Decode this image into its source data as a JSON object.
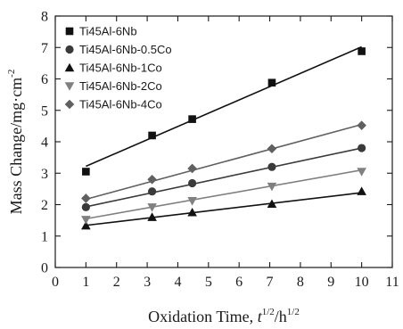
{
  "chart_data": {
    "type": "scatter",
    "xlabel": {
      "main": "Oxidation Time, ",
      "var1": "t",
      "sup1": "1/2",
      "sep": "/h",
      "sup2": "1/2"
    },
    "ylabel": {
      "main": "Mass Change/mg·cm",
      "sup": "-2"
    },
    "xlim": [
      0,
      11
    ],
    "ylim": [
      0,
      8
    ],
    "xticks": [
      0,
      1,
      2,
      3,
      4,
      5,
      6,
      7,
      8,
      9,
      10,
      11
    ],
    "yticks": [
      0,
      1,
      2,
      3,
      4,
      5,
      6,
      7,
      8
    ],
    "grid": false,
    "legend_position": "top-left",
    "x": [
      1,
      3.16,
      4.47,
      7.07,
      10
    ],
    "series": [
      {
        "name": "Ti45Al-6Nb",
        "marker": "square",
        "color": "#111111",
        "values": [
          3.05,
          4.2,
          4.72,
          5.88,
          6.88
        ],
        "fit": [
          3.22,
          7.02
        ]
      },
      {
        "name": "Ti45Al-6Nb-0.5Co",
        "marker": "circle",
        "color": "#3a3a3a",
        "values": [
          1.92,
          2.42,
          2.68,
          3.2,
          3.8
        ],
        "fit": [
          1.93,
          3.8
        ]
      },
      {
        "name": "Ti45Al-6Nb-1Co",
        "marker": "triangle-up",
        "color": "#111111",
        "values": [
          1.33,
          1.6,
          1.75,
          2.02,
          2.42
        ],
        "fit": [
          1.34,
          2.38
        ]
      },
      {
        "name": "Ti45Al-6Nb-2Co",
        "marker": "triangle-down",
        "color": "#808080",
        "values": [
          1.52,
          1.92,
          2.12,
          2.58,
          3.05
        ],
        "fit": [
          1.55,
          3.1
        ]
      },
      {
        "name": "Ti45Al-6Nb-4Co",
        "marker": "diamond",
        "color": "#606060",
        "values": [
          2.2,
          2.8,
          3.15,
          3.78,
          4.52
        ],
        "fit": [
          2.17,
          4.55
        ]
      }
    ]
  }
}
